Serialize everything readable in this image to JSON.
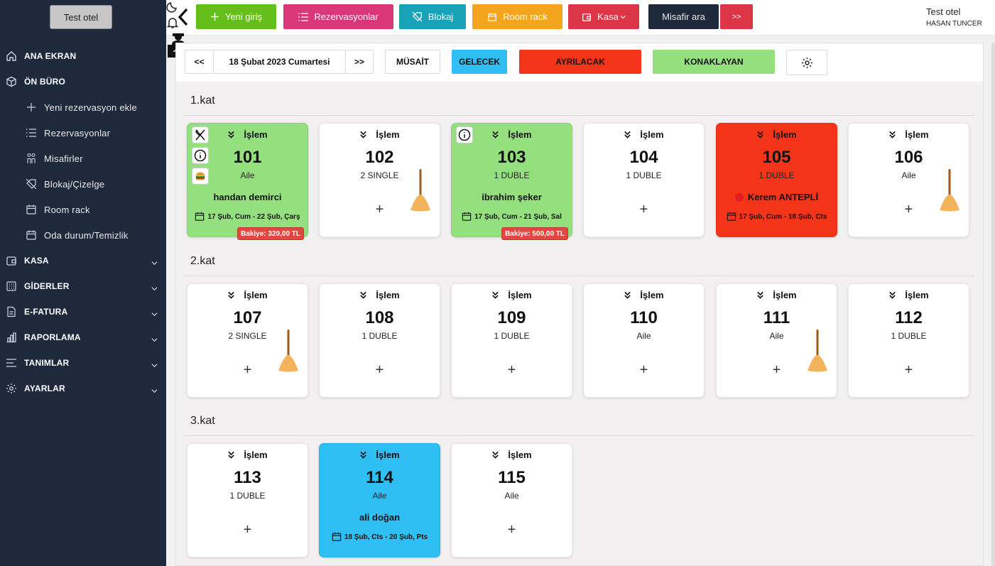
{
  "sidebar": {
    "hotel": "Test otel",
    "items": [
      {
        "label": "ANA EKRAN",
        "icon": "home-icon"
      },
      {
        "label": "ÖN BÜRO",
        "icon": "box-icon"
      },
      {
        "label": "Yeni rezervasyon ekle",
        "icon": "plus-icon"
      },
      {
        "label": "Rezervasyonlar",
        "icon": "list-icon"
      },
      {
        "label": "Misafirler",
        "icon": "users-icon"
      },
      {
        "label": "Blokaj/Çizelge",
        "icon": "block-icon"
      },
      {
        "label": "Room rack",
        "icon": "calendar-icon"
      },
      {
        "label": "Oda durum/Temizlik",
        "icon": "calendar-icon"
      },
      {
        "label": "KASA",
        "icon": "wallet-icon"
      },
      {
        "label": "GİDERLER",
        "icon": "grid-icon"
      },
      {
        "label": "E-FATURA",
        "icon": "invoice-icon"
      },
      {
        "label": "RAPORLAMA",
        "icon": "chart-icon"
      },
      {
        "label": "TANIMLAR",
        "icon": "menu-icon"
      },
      {
        "label": "AYARLAR",
        "icon": "gear-icon"
      }
    ]
  },
  "topbar": {
    "new_entry": "Yeni giriş",
    "reservations": "Rezervasyonlar",
    "block": "Blokaj",
    "room_rack": "Room rack",
    "cash": "Kasa",
    "guest_search": "Misafir ara",
    "next": ">>",
    "user_hotel": "Test otel",
    "user_name": "HASAN TUNCER",
    "colors": {
      "green": "#65bf1a",
      "pink": "#d93777",
      "teal": "#17a2b8",
      "orange": "#f3a51d",
      "red": "#dc3545",
      "dark": "#1e293b"
    }
  },
  "controls": {
    "prev": "<<",
    "date": "18 Şubat 2023 Cumartesi",
    "next": ">>",
    "available": "MÜSAİT",
    "future": "GELECEK",
    "departing": "AYRILACAK",
    "staying": "KONAKLAYAN"
  },
  "action_label": "İşlem",
  "floors": [
    {
      "name": "1.kat",
      "rooms": [
        {
          "no": "101",
          "type": "Aile",
          "guest": "handan demirci",
          "dates": "17 Şub, Cum - 22 Şub, Çarş",
          "balance": "Bakiye: 320,00 TL",
          "status": "green",
          "icons": [
            "fork-knife-icon",
            "info-icon",
            "burger-icon"
          ]
        },
        {
          "no": "102",
          "type": "2 SINGLE",
          "status": "white",
          "broom": true
        },
        {
          "no": "103",
          "type": "1 DUBLE",
          "guest": "ibrahim şeker",
          "dates": "17 Şub, Cum - 21 Şub, Sal",
          "balance": "Bakiye: 500,00 TL",
          "status": "green",
          "icons": [
            "info-icon"
          ]
        },
        {
          "no": "104",
          "type": "1 DUBLE",
          "status": "white"
        },
        {
          "no": "105",
          "type": "1 DUBLE",
          "guest": "Kerem ANTEPLİ",
          "dates": "17 Şub, Cum - 18 Şub, Cts",
          "status": "red",
          "dot": true
        },
        {
          "no": "106",
          "type": "Aile",
          "status": "white",
          "broom": true
        }
      ]
    },
    {
      "name": "2.kat",
      "rooms": [
        {
          "no": "107",
          "type": "2 SINGLE",
          "status": "white",
          "broom": true
        },
        {
          "no": "108",
          "type": "1 DUBLE",
          "status": "white"
        },
        {
          "no": "109",
          "type": "1 DUBLE",
          "status": "white"
        },
        {
          "no": "110",
          "type": "Aile",
          "status": "white"
        },
        {
          "no": "111",
          "type": "Aile",
          "status": "white",
          "broom": true
        },
        {
          "no": "112",
          "type": "1 DUBLE",
          "status": "white"
        }
      ]
    },
    {
      "name": "3.kat",
      "rooms": [
        {
          "no": "113",
          "type": "1 DUBLE",
          "status": "white"
        },
        {
          "no": "114",
          "type": "Aile",
          "guest": "ali doğan",
          "dates": "18 Şub, Cts - 20 Şub, Pts",
          "status": "blue"
        },
        {
          "no": "115",
          "type": "Aile",
          "status": "white"
        }
      ]
    }
  ]
}
